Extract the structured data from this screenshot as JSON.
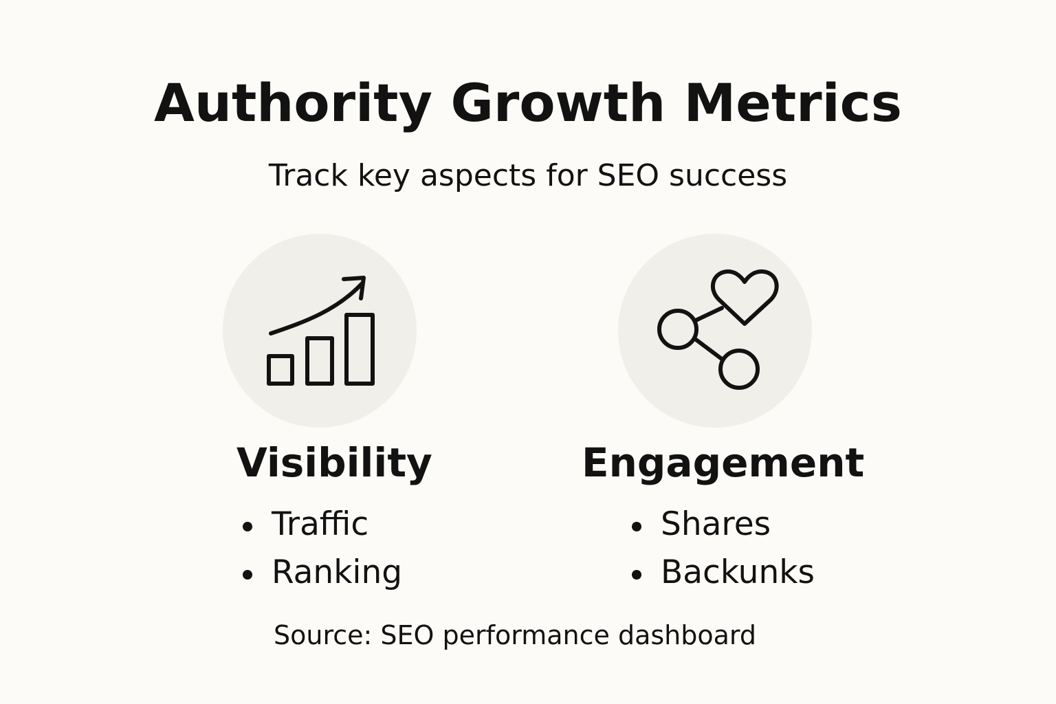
{
  "title": "Authority Growth Metrics",
  "subtitle": "Track key aspects for SEO success",
  "metrics": [
    {
      "title": "Visibility",
      "icon": "growth-chart-icon",
      "items": [
        "Traffic",
        "Ranking"
      ]
    },
    {
      "title": "Engagement",
      "icon": "share-heart-icon",
      "items": [
        "Shares",
        "Backunks"
      ]
    }
  ],
  "source": "Source: SEO performance dashboard",
  "colors": {
    "background": "#fcfbf8",
    "icon_circle": "#f1efea",
    "text": "#121212"
  }
}
